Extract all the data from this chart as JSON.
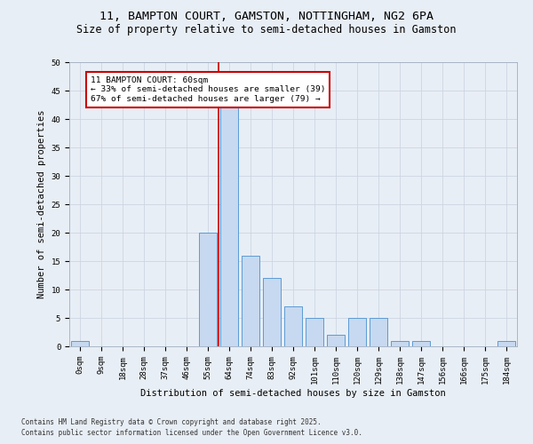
{
  "title_line1": "11, BAMPTON COURT, GAMSTON, NOTTINGHAM, NG2 6PA",
  "title_line2": "Size of property relative to semi-detached houses in Gamston",
  "xlabel": "Distribution of semi-detached houses by size in Gamston",
  "ylabel": "Number of semi-detached properties",
  "categories": [
    "0sqm",
    "9sqm",
    "18sqm",
    "28sqm",
    "37sqm",
    "46sqm",
    "55sqm",
    "64sqm",
    "74sqm",
    "83sqm",
    "92sqm",
    "101sqm",
    "110sqm",
    "120sqm",
    "129sqm",
    "138sqm",
    "147sqm",
    "156sqm",
    "166sqm",
    "175sqm",
    "184sqm"
  ],
  "values": [
    1,
    0,
    0,
    0,
    0,
    0,
    20,
    42,
    16,
    12,
    7,
    5,
    2,
    5,
    5,
    1,
    1,
    0,
    0,
    0,
    1
  ],
  "bar_color": "#c6d9f0",
  "bar_edge_color": "#5b9bd5",
  "property_line_x": 6.5,
  "annotation_title": "11 BAMPTON COURT: 60sqm",
  "annotation_line1": "← 33% of semi-detached houses are smaller (39)",
  "annotation_line2": "67% of semi-detached houses are larger (79) →",
  "annotation_box_color": "#ffffff",
  "annotation_box_edge_color": "#cc0000",
  "vline_color": "#cc0000",
  "grid_color": "#cdd5e3",
  "background_color": "#e8eef5",
  "ylim": [
    0,
    50
  ],
  "yticks": [
    0,
    5,
    10,
    15,
    20,
    25,
    30,
    35,
    40,
    45,
    50
  ],
  "footer_line1": "Contains HM Land Registry data © Crown copyright and database right 2025.",
  "footer_line2": "Contains public sector information licensed under the Open Government Licence v3.0.",
  "title_fontsize": 9.5,
  "subtitle_fontsize": 8.5,
  "tick_fontsize": 6.5,
  "label_fontsize": 7.5,
  "annotation_fontsize": 6.8,
  "footer_fontsize": 5.5
}
